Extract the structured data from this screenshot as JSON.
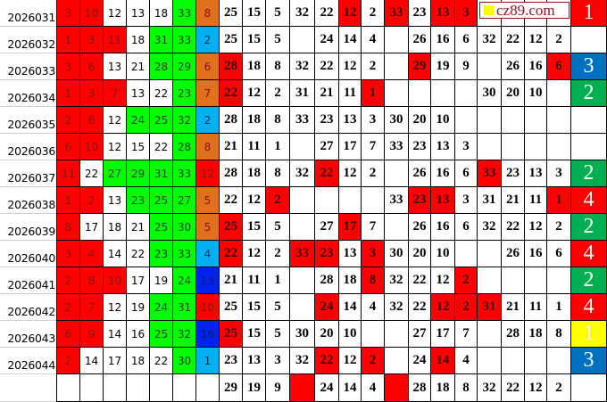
{
  "colors": {
    "r": "#ff0000",
    "w": "#ffffff",
    "g": "#00ff00",
    "o": "#e0701c",
    "lb": "#00b0f0",
    "db": "#0022ee",
    "fg": "#00b050",
    "fb": "#0070c0",
    "fy": "#ffff00",
    "fr": "#ff0000"
  },
  "watermark": {
    "text": "cz89.com"
  },
  "rows": [
    {
      "label": "2026031",
      "balls": [
        [
          "3",
          "r"
        ],
        [
          "10",
          "r"
        ],
        [
          "12",
          "w"
        ],
        [
          "13",
          "w"
        ],
        [
          "18",
          "w"
        ],
        [
          "33",
          "g"
        ],
        [
          "8",
          "o"
        ]
      ],
      "nums": [
        "25",
        "15",
        "5",
        "32",
        "22",
        "12",
        "2",
        "33",
        "23",
        "13",
        "3",
        "",
        "",
        "",
        ""
      ],
      "red": [
        5,
        7,
        9,
        10
      ],
      "final": [
        "1",
        "fr"
      ]
    },
    {
      "label": "2026032",
      "balls": [
        [
          "1",
          "r"
        ],
        [
          "3",
          "r"
        ],
        [
          "11",
          "r"
        ],
        [
          "18",
          "w"
        ],
        [
          "31",
          "g"
        ],
        [
          "33",
          "g"
        ],
        [
          "2",
          "lb"
        ]
      ],
      "nums": [
        "25",
        "15",
        "5",
        "",
        "24",
        "14",
        "4",
        "",
        "26",
        "16",
        "6",
        "32",
        "22",
        "12",
        "2"
      ],
      "red": [],
      "final": [
        "",
        ""
      ]
    },
    {
      "label": "2026033",
      "balls": [
        [
          "3",
          "r"
        ],
        [
          "6",
          "r"
        ],
        [
          "13",
          "w"
        ],
        [
          "21",
          "w"
        ],
        [
          "28",
          "g"
        ],
        [
          "29",
          "g"
        ],
        [
          "6",
          "o"
        ]
      ],
      "nums": [
        "28",
        "18",
        "8",
        "32",
        "22",
        "12",
        "2",
        "",
        "29",
        "19",
        "9",
        "",
        "26",
        "16",
        "6"
      ],
      "red": [
        0,
        8,
        14
      ],
      "final": [
        "3",
        "fb"
      ]
    },
    {
      "label": "2026034",
      "balls": [
        [
          "1",
          "r"
        ],
        [
          "3",
          "r"
        ],
        [
          "7",
          "r"
        ],
        [
          "13",
          "w"
        ],
        [
          "22",
          "w"
        ],
        [
          "23",
          "g"
        ],
        [
          "7",
          "o"
        ]
      ],
      "nums": [
        "22",
        "12",
        "2",
        "31",
        "21",
        "11",
        "1",
        "",
        "",
        "",
        "",
        "30",
        "20",
        "10",
        ""
      ],
      "red": [
        0,
        6
      ],
      "final": [
        "2",
        "fg"
      ]
    },
    {
      "label": "2026035",
      "balls": [
        [
          "2",
          "r"
        ],
        [
          "6",
          "r"
        ],
        [
          "12",
          "w"
        ],
        [
          "24",
          "g"
        ],
        [
          "25",
          "g"
        ],
        [
          "32",
          "g"
        ],
        [
          "2",
          "lb"
        ]
      ],
      "nums": [
        "28",
        "18",
        "8",
        "33",
        "23",
        "13",
        "3",
        "30",
        "20",
        "10",
        "",
        "",
        "",
        "",
        ""
      ],
      "red": [],
      "final": [
        "",
        ""
      ]
    },
    {
      "label": "2026036",
      "balls": [
        [
          "6",
          "r"
        ],
        [
          "10",
          "r"
        ],
        [
          "12",
          "w"
        ],
        [
          "15",
          "w"
        ],
        [
          "22",
          "w"
        ],
        [
          "28",
          "g"
        ],
        [
          "8",
          "o"
        ]
      ],
      "nums": [
        "21",
        "11",
        "1",
        "",
        "27",
        "17",
        "7",
        "33",
        "23",
        "13",
        "3",
        "",
        "",
        "",
        ""
      ],
      "red": [],
      "final": [
        "",
        ""
      ]
    },
    {
      "label": "2026037",
      "balls": [
        [
          "11",
          "r"
        ],
        [
          "22",
          "w"
        ],
        [
          "27",
          "g"
        ],
        [
          "29",
          "g"
        ],
        [
          "31",
          "g"
        ],
        [
          "33",
          "g"
        ],
        [
          "12",
          "r"
        ]
      ],
      "nums": [
        "28",
        "18",
        "8",
        "32",
        "22",
        "12",
        "2",
        "",
        "26",
        "16",
        "6",
        "33",
        "23",
        "13",
        "3"
      ],
      "red": [
        4,
        11
      ],
      "final": [
        "2",
        "fg"
      ]
    },
    {
      "label": "2026038",
      "balls": [
        [
          "1",
          "r"
        ],
        [
          "2",
          "r"
        ],
        [
          "13",
          "w"
        ],
        [
          "23",
          "g"
        ],
        [
          "25",
          "g"
        ],
        [
          "27",
          "g"
        ],
        [
          "5",
          "o"
        ]
      ],
      "nums": [
        "22",
        "12",
        "2",
        "",
        "",
        "",
        "",
        "33",
        "23",
        "13",
        "3",
        "31",
        "21",
        "11",
        "1"
      ],
      "red": [
        2,
        8,
        9,
        14
      ],
      "final": [
        "4",
        "fr"
      ]
    },
    {
      "label": "2026039",
      "balls": [
        [
          "8",
          "r"
        ],
        [
          "17",
          "w"
        ],
        [
          "18",
          "w"
        ],
        [
          "21",
          "w"
        ],
        [
          "25",
          "g"
        ],
        [
          "30",
          "g"
        ],
        [
          "5",
          "o"
        ]
      ],
      "nums": [
        "25",
        "15",
        "5",
        "",
        "27",
        "17",
        "7",
        "",
        "26",
        "16",
        "6",
        "32",
        "22",
        "12",
        "2"
      ],
      "red": [
        0,
        5
      ],
      "final": [
        "2",
        "fg"
      ]
    },
    {
      "label": "2026040",
      "balls": [
        [
          "3",
          "r"
        ],
        [
          "4",
          "r"
        ],
        [
          "14",
          "w"
        ],
        [
          "22",
          "w"
        ],
        [
          "23",
          "g"
        ],
        [
          "33",
          "g"
        ],
        [
          "4",
          "lb"
        ]
      ],
      "nums": [
        "22",
        "12",
        "2",
        "33",
        "23",
        "13",
        "3",
        "30",
        "20",
        "10",
        "",
        "",
        "26",
        "16",
        "6"
      ],
      "red": [
        0,
        3,
        4,
        6
      ],
      "final": [
        "4",
        "fr"
      ]
    },
    {
      "label": "2026041",
      "balls": [
        [
          "2",
          "r"
        ],
        [
          "8",
          "r"
        ],
        [
          "10",
          "r"
        ],
        [
          "17",
          "w"
        ],
        [
          "19",
          "w"
        ],
        [
          "24",
          "g"
        ],
        [
          "13",
          "db"
        ]
      ],
      "nums": [
        "21",
        "11",
        "1",
        "",
        "28",
        "18",
        "8",
        "32",
        "22",
        "12",
        "2",
        "",
        "",
        "",
        ""
      ],
      "red": [
        6,
        10
      ],
      "final": [
        "2",
        "fg"
      ]
    },
    {
      "label": "2026042",
      "balls": [
        [
          "2",
          "r"
        ],
        [
          "7",
          "r"
        ],
        [
          "12",
          "w"
        ],
        [
          "19",
          "w"
        ],
        [
          "24",
          "g"
        ],
        [
          "31",
          "g"
        ],
        [
          "10",
          "r"
        ]
      ],
      "nums": [
        "25",
        "15",
        "5",
        "",
        "24",
        "14",
        "4",
        "32",
        "22",
        "12",
        "2",
        "31",
        "21",
        "11",
        "1"
      ],
      "red": [
        4,
        9,
        10,
        11
      ],
      "final": [
        "4",
        "fr"
      ]
    },
    {
      "label": "2026043",
      "balls": [
        [
          "6",
          "r"
        ],
        [
          "9",
          "r"
        ],
        [
          "14",
          "w"
        ],
        [
          "16",
          "w"
        ],
        [
          "25",
          "g"
        ],
        [
          "32",
          "g"
        ],
        [
          "16",
          "db"
        ]
      ],
      "nums": [
        "25",
        "15",
        "5",
        "30",
        "20",
        "10",
        "",
        "",
        "27",
        "17",
        "7",
        "",
        "28",
        "18",
        "8"
      ],
      "red": [
        0
      ],
      "final": [
        "1",
        "fy"
      ]
    },
    {
      "label": "2026044",
      "balls": [
        [
          "2",
          "r"
        ],
        [
          "14",
          "w"
        ],
        [
          "17",
          "w"
        ],
        [
          "18",
          "w"
        ],
        [
          "22",
          "w"
        ],
        [
          "30",
          "g"
        ],
        [
          "1",
          "lb"
        ]
      ],
      "nums": [
        "23",
        "13",
        "3",
        "32",
        "22",
        "12",
        "2",
        "",
        "24",
        "14",
        "4",
        "",
        "",
        "",
        ""
      ],
      "red": [
        4,
        6,
        9
      ],
      "final": [
        "3",
        "fb"
      ]
    },
    {
      "label": "",
      "balls": [
        [
          "",
          "w"
        ],
        [
          "",
          "w"
        ],
        [
          "",
          "w"
        ],
        [
          "",
          "w"
        ],
        [
          "",
          "w"
        ],
        [
          "",
          "w"
        ],
        [
          "",
          "w"
        ]
      ],
      "nums": [
        "29",
        "19",
        "9",
        "",
        "24",
        "14",
        "4",
        "",
        "28",
        "18",
        "8",
        "32",
        "22",
        "12",
        "2"
      ],
      "red": [
        3,
        7
      ],
      "final": [
        "",
        ""
      ]
    }
  ]
}
